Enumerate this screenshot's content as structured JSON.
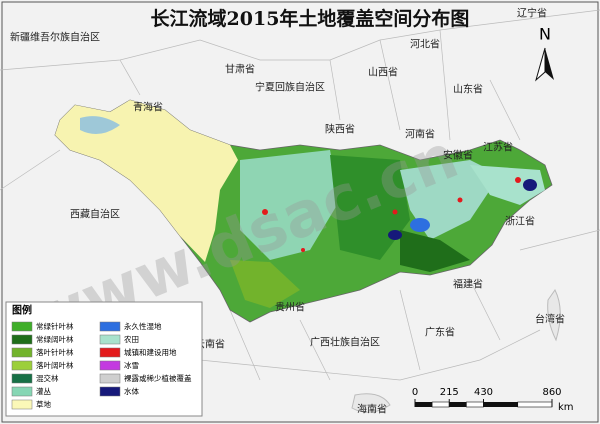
{
  "title": "长江流域2015年土地覆盖空间分布图",
  "watermark": "www.dsac.cn",
  "north": "N",
  "places": [
    "辽宁省",
    "新疆维吾尔族自治区",
    "河北省",
    "甘肃省",
    "宁夏回族自治区",
    "山西省",
    "山东省",
    "青海省",
    "陕西省",
    "河南省",
    "江苏省",
    "安徽省",
    "西藏自治区",
    "浙江省",
    "贵州省",
    "福建省",
    "云南省",
    "广西壮族自治区",
    "广东省",
    "台湾省",
    "海南省"
  ],
  "legend": {
    "title": "图例",
    "items": [
      {
        "name": "常绿针叶林",
        "color": "#3fae29"
      },
      {
        "name": "常绿阔叶林",
        "color": "#1f6e1a"
      },
      {
        "name": "落叶针叶林",
        "color": "#72b32c"
      },
      {
        "name": "落叶阔叶林",
        "color": "#9ccf3a"
      },
      {
        "name": "混交林",
        "color": "#177046"
      },
      {
        "name": "灌丛",
        "color": "#86d6b4"
      },
      {
        "name": "草地",
        "color": "#fbf8b8"
      },
      {
        "name": "永久性湿地",
        "color": "#2d6fe0"
      },
      {
        "name": "农田",
        "color": "#a8e2cc"
      },
      {
        "name": "城镇和建设用地",
        "color": "#e31a1c"
      },
      {
        "name": "冰雪",
        "color": "#c33ae0"
      },
      {
        "name": "裸露或稀少植被覆盖",
        "color": "#cfcfcf"
      },
      {
        "name": "水体",
        "color": "#16197a"
      }
    ]
  },
  "scale_bar": {
    "ticks": [
      0,
      215,
      430,
      860
    ],
    "unit": "km"
  }
}
